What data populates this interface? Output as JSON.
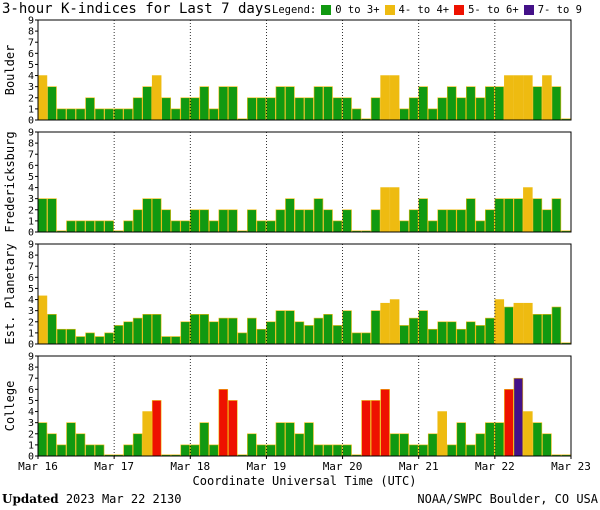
{
  "title": "3-hour K-indices for Last 7 days",
  "legend": {
    "label": "Legend:",
    "items": [
      {
        "label": "0 to 3+",
        "color": "#119911"
      },
      {
        "label": "4- to 4+",
        "color": "#eebb11"
      },
      {
        "label": "5- to 6+",
        "color": "#ee1100"
      },
      {
        "label": "7- to 9",
        "color": "#441188"
      }
    ]
  },
  "footer": {
    "updated_label": "Updated",
    "updated_value": "2023 Mar 22 2130",
    "source": "NOAA/SWPC Boulder, CO USA"
  },
  "chart_data": {
    "type": "bar",
    "xlabel": "Coordinate Universal Time (UTC)",
    "x_ticks": [
      "Mar 16",
      "Mar 17",
      "Mar 18",
      "Mar 19",
      "Mar 20",
      "Mar 21",
      "Mar 22",
      "Mar 23"
    ],
    "ylim": [
      0,
      9
    ],
    "y_ticks": [
      0,
      1,
      2,
      3,
      4,
      5,
      6,
      7,
      8,
      9
    ],
    "slots_per_day": 8,
    "panels": [
      {
        "name": "Boulder",
        "values": [
          4,
          3,
          1,
          1,
          1,
          2,
          1,
          1,
          1,
          1,
          2,
          3,
          4,
          2,
          1,
          2,
          2,
          3,
          1,
          3,
          3,
          0,
          2,
          2,
          2,
          3,
          3,
          2,
          2,
          3,
          3,
          2,
          2,
          1,
          0,
          2,
          4,
          4,
          1,
          2,
          3,
          1,
          2,
          3,
          2,
          3,
          2,
          3,
          3,
          4,
          4,
          4,
          3,
          4,
          3,
          0
        ]
      },
      {
        "name": "Fredericksburg",
        "values": [
          3,
          3,
          0,
          1,
          1,
          1,
          1,
          1,
          0,
          1,
          2,
          3,
          3,
          2,
          1,
          1,
          2,
          2,
          1,
          2,
          2,
          0,
          2,
          1,
          1,
          2,
          3,
          2,
          2,
          3,
          2,
          1,
          2,
          0,
          0,
          2,
          4,
          4,
          1,
          2,
          3,
          1,
          2,
          2,
          2,
          3,
          1,
          2,
          3,
          3,
          3,
          4,
          3,
          2,
          3,
          0
        ]
      },
      {
        "name": "Est. Planetary",
        "values": [
          4.33,
          2.67,
          1.33,
          1.33,
          0.67,
          1,
          0.67,
          1,
          1.67,
          2,
          2.33,
          2.67,
          2.67,
          0.67,
          0.67,
          2,
          2.67,
          2.67,
          2,
          2.33,
          2.33,
          1,
          2.33,
          1.33,
          2,
          3,
          3,
          2,
          1.67,
          2.33,
          2.67,
          1.67,
          3,
          1,
          1,
          3,
          3.67,
          4,
          1.67,
          2.33,
          3,
          1.33,
          2,
          2,
          1.33,
          2,
          1.67,
          2.33,
          4,
          3.33,
          3.67,
          3.67,
          2.67,
          2.67,
          3.33,
          0
        ]
      },
      {
        "name": "College",
        "values": [
          3,
          2,
          1,
          3,
          2,
          1,
          1,
          0,
          0,
          1,
          2,
          4,
          5,
          0,
          0,
          1,
          1,
          3,
          1,
          6,
          5,
          0,
          2,
          1,
          1,
          3,
          3,
          2,
          3,
          1,
          1,
          1,
          1,
          0,
          5,
          5,
          6,
          2,
          2,
          1,
          1,
          2,
          4,
          1,
          3,
          1,
          2,
          3,
          3,
          6,
          7,
          4,
          3,
          2,
          0,
          0
        ]
      }
    ]
  }
}
